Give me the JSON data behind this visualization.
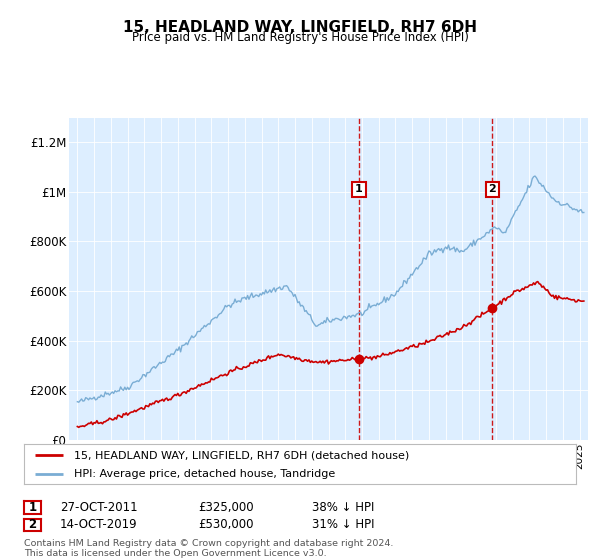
{
  "title": "15, HEADLAND WAY, LINGFIELD, RH7 6DH",
  "subtitle": "Price paid vs. HM Land Registry's House Price Index (HPI)",
  "ylabel_ticks": [
    "£0",
    "£200K",
    "£400K",
    "£600K",
    "£800K",
    "£1M",
    "£1.2M"
  ],
  "ytick_values": [
    0,
    200000,
    400000,
    600000,
    800000,
    1000000,
    1200000
  ],
  "ylim": [
    0,
    1300000
  ],
  "xlim_start": 1994.5,
  "xlim_end": 2025.5,
  "bg_color": "#ddeeff",
  "line1_color": "#cc0000",
  "line2_color": "#7aadd4",
  "dashed_line_color": "#cc0000",
  "sale1_year": 2011.82,
  "sale1_price": 325000,
  "sale2_year": 2019.79,
  "sale2_price": 530000,
  "legend_label1": "15, HEADLAND WAY, LINGFIELD, RH7 6DH (detached house)",
  "legend_label2": "HPI: Average price, detached house, Tandridge",
  "table_row1": [
    "1",
    "27-OCT-2011",
    "£325,000",
    "38% ↓ HPI"
  ],
  "table_row2": [
    "2",
    "14-OCT-2019",
    "£530,000",
    "31% ↓ HPI"
  ],
  "footnote": "Contains HM Land Registry data © Crown copyright and database right 2024.\nThis data is licensed under the Open Government Licence v3.0."
}
